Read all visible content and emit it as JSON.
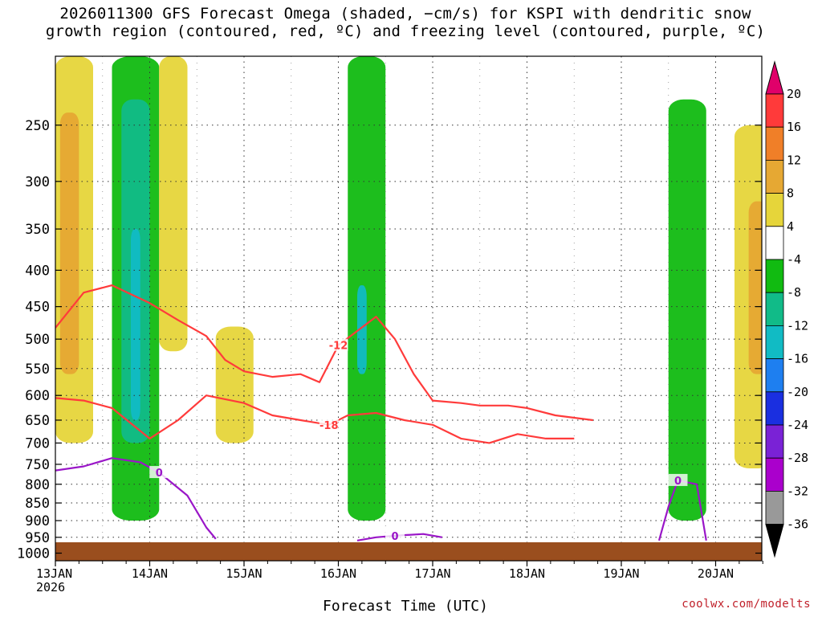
{
  "chart_data": {
    "type": "heatmap",
    "title": "2026011300 GFS Forecast Omega (shaded, −cm/s) for KSPI with dendritic snow\ngrowth region (contoured, red, ºC) and freezing level (contoured, purple, ºC)",
    "xlabel": "Forecast Time (UTC)",
    "ylabel": "",
    "credit": "coolwx.com/modelts",
    "x_ticks": [
      "13JAN\n2026",
      "14JAN",
      "15JAN",
      "16JAN",
      "17JAN",
      "18JAN",
      "19JAN",
      "20JAN"
    ],
    "y_ticks": [
      250,
      300,
      350,
      400,
      450,
      500,
      550,
      600,
      650,
      700,
      750,
      800,
      850,
      900,
      950,
      1000
    ],
    "y_range": [
      1025,
      200
    ],
    "x_range_days": [
      0,
      7.6
    ],
    "grid": true,
    "colorbar": {
      "labels": [
        20,
        16,
        12,
        8,
        4,
        -4,
        -8,
        -12,
        -16,
        -20,
        -24,
        -28,
        -32,
        -36
      ],
      "colors": [
        "#e0006a",
        "#ff3a3a",
        "#f07f28",
        "#e6a833",
        "#e6d53a",
        "#ffffff",
        "#11bb11",
        "#11bb88",
        "#11bbc4",
        "#1e7ff0",
        "#1a2fe0",
        "#7a22d6",
        "#aa00cc",
        "#999999"
      ]
    },
    "contours": {
      "dendritic_red": [
        {
          "label": "-12",
          "color": "#ff3b3b",
          "points": [
            [
              0,
              482
            ],
            [
              0.3,
              430
            ],
            [
              0.6,
              420
            ],
            [
              1.0,
              445
            ],
            [
              1.3,
              470
            ],
            [
              1.6,
              495
            ],
            [
              1.8,
              535
            ],
            [
              2.0,
              555
            ],
            [
              2.3,
              565
            ],
            [
              2.6,
              560
            ],
            [
              2.8,
              575
            ],
            [
              3.0,
              510
            ],
            [
              3.4,
              465
            ],
            [
              3.6,
              500
            ],
            [
              3.8,
              560
            ],
            [
              4.0,
              610
            ],
            [
              4.3,
              615
            ],
            [
              4.5,
              620
            ],
            [
              4.8,
              620
            ],
            [
              5.0,
              625
            ],
            [
              5.3,
              640
            ],
            [
              5.7,
              650
            ]
          ]
        },
        {
          "label": "-18",
          "color": "#ff3b3b",
          "points": [
            [
              0,
              605
            ],
            [
              0.3,
              610
            ],
            [
              0.6,
              625
            ],
            [
              1.0,
              690
            ],
            [
              1.3,
              650
            ],
            [
              1.6,
              600
            ],
            [
              2.0,
              615
            ],
            [
              2.3,
              640
            ],
            [
              2.6,
              650
            ],
            [
              2.9,
              660
            ],
            [
              3.1,
              640
            ],
            [
              3.4,
              635
            ],
            [
              3.7,
              650
            ],
            [
              4.0,
              660
            ],
            [
              4.3,
              690
            ],
            [
              4.6,
              700
            ],
            [
              4.9,
              680
            ],
            [
              5.2,
              690
            ],
            [
              5.5,
              690
            ]
          ]
        }
      ],
      "freezing_purple": [
        {
          "label": "0",
          "color": "#9a16c8",
          "points": [
            [
              0,
              765
            ],
            [
              0.3,
              755
            ],
            [
              0.6,
              735
            ],
            [
              0.9,
              745
            ],
            [
              1.1,
              770
            ],
            [
              1.4,
              830
            ],
            [
              1.6,
              920
            ],
            [
              1.7,
              955
            ]
          ]
        },
        {
          "label": "0",
          "color": "#9a16c8",
          "points": [
            [
              3.2,
              960
            ],
            [
              3.4,
              950
            ],
            [
              3.6,
              945
            ],
            [
              3.9,
              940
            ],
            [
              4.1,
              950
            ]
          ]
        },
        {
          "label": "0",
          "color": "#9a16c8",
          "points": [
            [
              6.4,
              960
            ],
            [
              6.5,
              860
            ],
            [
              6.6,
              790
            ],
            [
              6.8,
              800
            ],
            [
              6.9,
              960
            ]
          ]
        }
      ]
    },
    "omega_regions": [
      {
        "value": 4,
        "x": [
          0.0,
          0.4
        ],
        "p": [
          200,
          700
        ]
      },
      {
        "value": 8,
        "x": [
          0.05,
          0.25
        ],
        "p": [
          240,
          560
        ]
      },
      {
        "value": -8,
        "x": [
          0.6,
          1.1
        ],
        "p": [
          200,
          900
        ]
      },
      {
        "value": -12,
        "x": [
          0.7,
          1.0
        ],
        "p": [
          230,
          700
        ]
      },
      {
        "value": -16,
        "x": [
          0.8,
          0.9
        ],
        "p": [
          350,
          650
        ]
      },
      {
        "value": 4,
        "x": [
          1.1,
          1.4
        ],
        "p": [
          200,
          520
        ]
      },
      {
        "value": 4,
        "x": [
          1.7,
          2.1
        ],
        "p": [
          480,
          700
        ]
      },
      {
        "value": -8,
        "x": [
          3.1,
          3.5
        ],
        "p": [
          200,
          900
        ]
      },
      {
        "value": -16,
        "x": [
          3.2,
          3.3
        ],
        "p": [
          420,
          560
        ]
      },
      {
        "value": -8,
        "x": [
          6.5,
          6.9
        ],
        "p": [
          230,
          900
        ]
      },
      {
        "value": 4,
        "x": [
          7.2,
          7.6
        ],
        "p": [
          250,
          760
        ]
      },
      {
        "value": 8,
        "x": [
          7.35,
          7.55
        ],
        "p": [
          320,
          560
        ]
      }
    ]
  }
}
